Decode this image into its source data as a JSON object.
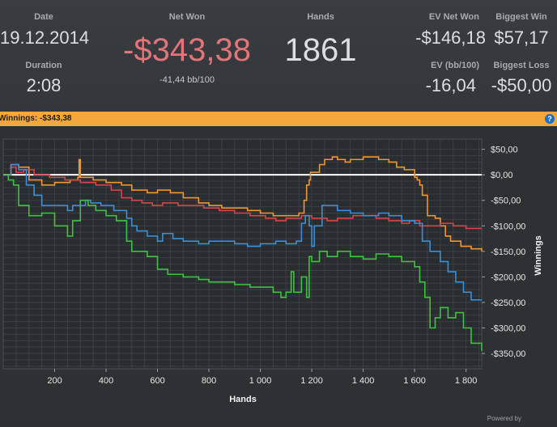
{
  "stats": {
    "date_label": "Date",
    "date_value": "19.12.2014",
    "duration_label": "Duration",
    "duration_value": "2:08",
    "net_won_label": "Net Won",
    "net_won_value": "-$343,38",
    "net_won_sub": "-41,44 bb/100",
    "hands_label": "Hands",
    "hands_value": "1861",
    "ev_net_won_label": "EV Net Won",
    "ev_net_won_value": "-$146,18",
    "ev_bb_label": "EV (bb/100)",
    "ev_bb_value": "-16,04",
    "biggest_win_label": "Biggest Win",
    "biggest_win_value": "$57,17",
    "biggest_loss_label": "Biggest Loss",
    "biggest_loss_value": "-$50,00"
  },
  "winnings_bar": {
    "label": "Winnings:",
    "value": "-$343,38",
    "help_glyph": "?"
  },
  "chart_data": {
    "type": "line",
    "xlabel": "Hands",
    "ylabel": "Winnings",
    "xlim": [
      0,
      1861
    ],
    "ylim": [
      -380,
      70
    ],
    "x_ticks": [
      200,
      400,
      600,
      800,
      1000,
      1200,
      1400,
      1600,
      1800
    ],
    "x_tick_labels": [
      "200",
      "400",
      "600",
      "800",
      "1 000",
      "1 200",
      "1 400",
      "1 600",
      "1 800"
    ],
    "y_ticks": [
      50,
      0,
      -50,
      -100,
      -150,
      -200,
      -250,
      -300,
      -350
    ],
    "y_tick_labels": [
      "$50,00",
      "$0,00",
      "-$50,00",
      "-$100,00",
      "-$150,00",
      "-$200,00",
      "-$250,00",
      "-$300,00",
      "-$350,00"
    ],
    "zero_line": true,
    "grid": true,
    "series": [
      {
        "color": "#f0962e",
        "points": [
          [
            0,
            0
          ],
          [
            30,
            20
          ],
          [
            60,
            15
          ],
          [
            100,
            -10
          ],
          [
            150,
            -20
          ],
          [
            200,
            -15
          ],
          [
            260,
            -10
          ],
          [
            290,
            -5
          ],
          [
            295,
            30
          ],
          [
            300,
            -5
          ],
          [
            350,
            -10
          ],
          [
            400,
            -15
          ],
          [
            460,
            -20
          ],
          [
            500,
            -30
          ],
          [
            560,
            -35
          ],
          [
            600,
            -30
          ],
          [
            650,
            -35
          ],
          [
            700,
            -45
          ],
          [
            760,
            -55
          ],
          [
            800,
            -60
          ],
          [
            850,
            -65
          ],
          [
            900,
            -65
          ],
          [
            950,
            -70
          ],
          [
            1000,
            -75
          ],
          [
            1050,
            -80
          ],
          [
            1100,
            -80
          ],
          [
            1150,
            -75
          ],
          [
            1170,
            -50
          ],
          [
            1180,
            -20
          ],
          [
            1190,
            -10
          ],
          [
            1195,
            5
          ],
          [
            1200,
            5
          ],
          [
            1230,
            20
          ],
          [
            1250,
            30
          ],
          [
            1280,
            35
          ],
          [
            1300,
            30
          ],
          [
            1330,
            25
          ],
          [
            1350,
            30
          ],
          [
            1400,
            35
          ],
          [
            1430,
            35
          ],
          [
            1460,
            30
          ],
          [
            1500,
            25
          ],
          [
            1530,
            15
          ],
          [
            1560,
            10
          ],
          [
            1600,
            -5
          ],
          [
            1610,
            -10
          ],
          [
            1620,
            -20
          ],
          [
            1630,
            -40
          ],
          [
            1650,
            -80
          ],
          [
            1680,
            -85
          ],
          [
            1700,
            -100
          ],
          [
            1720,
            -120
          ],
          [
            1740,
            -130
          ],
          [
            1780,
            -140
          ],
          [
            1820,
            -145
          ],
          [
            1861,
            -150
          ]
        ]
      },
      {
        "color": "#d6454a",
        "points": [
          [
            0,
            0
          ],
          [
            30,
            15
          ],
          [
            50,
            5
          ],
          [
            80,
            10
          ],
          [
            120,
            0
          ],
          [
            180,
            -5
          ],
          [
            240,
            -10
          ],
          [
            300,
            -15
          ],
          [
            360,
            -20
          ],
          [
            420,
            -30
          ],
          [
            460,
            -45
          ],
          [
            500,
            -50
          ],
          [
            540,
            -55
          ],
          [
            580,
            -60
          ],
          [
            620,
            -55
          ],
          [
            680,
            -60
          ],
          [
            720,
            -60
          ],
          [
            780,
            -65
          ],
          [
            840,
            -70
          ],
          [
            900,
            -75
          ],
          [
            960,
            -80
          ],
          [
            1020,
            -85
          ],
          [
            1060,
            -90
          ],
          [
            1100,
            -85
          ],
          [
            1160,
            -80
          ],
          [
            1200,
            -85
          ],
          [
            1260,
            -90
          ],
          [
            1300,
            -85
          ],
          [
            1360,
            -80
          ],
          [
            1400,
            -80
          ],
          [
            1450,
            -85
          ],
          [
            1500,
            -90
          ],
          [
            1550,
            -95
          ],
          [
            1580,
            -90
          ],
          [
            1620,
            -100
          ],
          [
            1660,
            -100
          ],
          [
            1700,
            -95
          ],
          [
            1750,
            -100
          ],
          [
            1800,
            -105
          ],
          [
            1861,
            -105
          ]
        ]
      },
      {
        "color": "#3b8fd6",
        "points": [
          [
            0,
            0
          ],
          [
            30,
            20
          ],
          [
            60,
            10
          ],
          [
            90,
            -20
          ],
          [
            120,
            -40
          ],
          [
            150,
            -60
          ],
          [
            200,
            -60
          ],
          [
            250,
            -70
          ],
          [
            270,
            -60
          ],
          [
            300,
            -60
          ],
          [
            320,
            -50
          ],
          [
            340,
            -55
          ],
          [
            380,
            -60
          ],
          [
            430,
            -70
          ],
          [
            480,
            -85
          ],
          [
            500,
            -100
          ],
          [
            520,
            -110
          ],
          [
            560,
            -120
          ],
          [
            600,
            -130
          ],
          [
            620,
            -115
          ],
          [
            660,
            -125
          ],
          [
            700,
            -130
          ],
          [
            760,
            -135
          ],
          [
            800,
            -130
          ],
          [
            860,
            -130
          ],
          [
            900,
            -135
          ],
          [
            950,
            -140
          ],
          [
            1000,
            -135
          ],
          [
            1060,
            -130
          ],
          [
            1100,
            -135
          ],
          [
            1140,
            -130
          ],
          [
            1160,
            -95
          ],
          [
            1175,
            -80
          ],
          [
            1190,
            -100
          ],
          [
            1200,
            -140
          ],
          [
            1210,
            -100
          ],
          [
            1240,
            -60
          ],
          [
            1280,
            -60
          ],
          [
            1300,
            -70
          ],
          [
            1350,
            -75
          ],
          [
            1400,
            -80
          ],
          [
            1460,
            -75
          ],
          [
            1500,
            -80
          ],
          [
            1550,
            -90
          ],
          [
            1600,
            -95
          ],
          [
            1630,
            -130
          ],
          [
            1660,
            -150
          ],
          [
            1700,
            -170
          ],
          [
            1730,
            -190
          ],
          [
            1760,
            -210
          ],
          [
            1790,
            -230
          ],
          [
            1820,
            -245
          ],
          [
            1861,
            -245
          ]
        ]
      },
      {
        "color": "#3fc243",
        "points": [
          [
            0,
            0
          ],
          [
            20,
            -10
          ],
          [
            40,
            -20
          ],
          [
            60,
            -60
          ],
          [
            100,
            -80
          ],
          [
            150,
            -75
          ],
          [
            200,
            -100
          ],
          [
            250,
            -120
          ],
          [
            270,
            -90
          ],
          [
            300,
            -50
          ],
          [
            330,
            -60
          ],
          [
            360,
            -70
          ],
          [
            400,
            -80
          ],
          [
            440,
            -90
          ],
          [
            480,
            -130
          ],
          [
            500,
            -150
          ],
          [
            560,
            -160
          ],
          [
            600,
            -185
          ],
          [
            640,
            -195
          ],
          [
            700,
            -200
          ],
          [
            760,
            -205
          ],
          [
            800,
            -210
          ],
          [
            860,
            -210
          ],
          [
            900,
            -215
          ],
          [
            960,
            -220
          ],
          [
            1010,
            -220
          ],
          [
            1050,
            -230
          ],
          [
            1080,
            -240
          ],
          [
            1100,
            -230
          ],
          [
            1120,
            -190
          ],
          [
            1130,
            -230
          ],
          [
            1160,
            -200
          ],
          [
            1180,
            -240
          ],
          [
            1190,
            -160
          ],
          [
            1200,
            -170
          ],
          [
            1230,
            -150
          ],
          [
            1260,
            -160
          ],
          [
            1300,
            -150
          ],
          [
            1350,
            -160
          ],
          [
            1400,
            -165
          ],
          [
            1450,
            -155
          ],
          [
            1500,
            -160
          ],
          [
            1550,
            -170
          ],
          [
            1600,
            -180
          ],
          [
            1620,
            -210
          ],
          [
            1640,
            -240
          ],
          [
            1660,
            -300
          ],
          [
            1680,
            -280
          ],
          [
            1700,
            -260
          ],
          [
            1730,
            -280
          ],
          [
            1760,
            -270
          ],
          [
            1790,
            -300
          ],
          [
            1820,
            -330
          ],
          [
            1861,
            -345
          ]
        ]
      }
    ]
  },
  "footer": {
    "powered_text": "Powered by"
  }
}
